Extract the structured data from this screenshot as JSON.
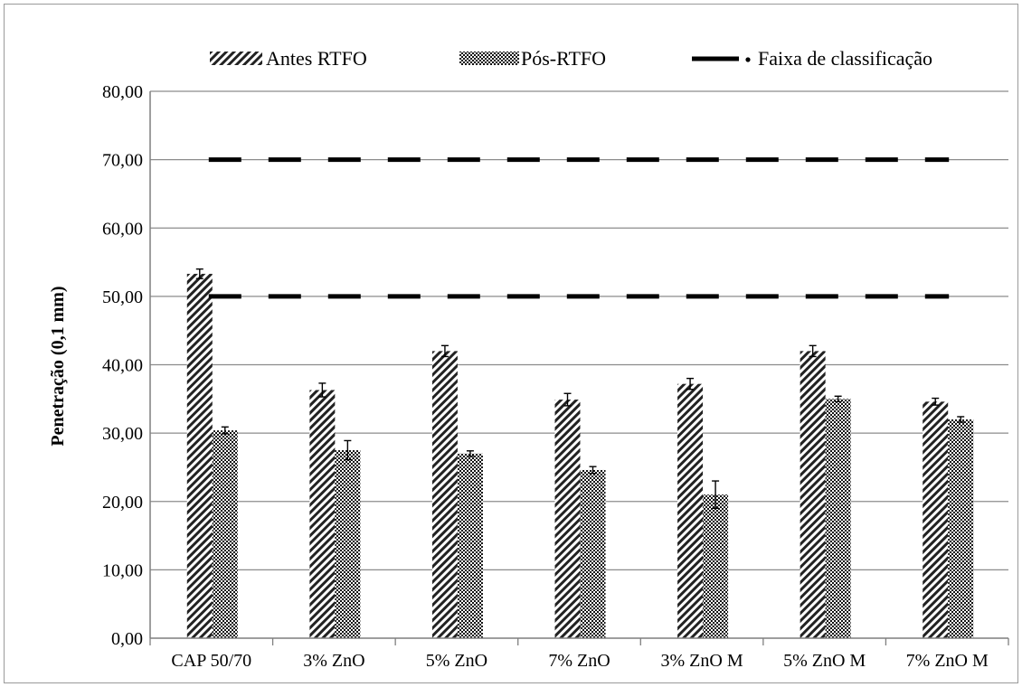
{
  "chart_data": {
    "type": "bar",
    "title": "",
    "xlabel": "",
    "ylabel": "Penetração (0,1 mm)",
    "ylim": [
      0,
      80
    ],
    "yticks": [
      "0,00",
      "10,00",
      "20,00",
      "30,00",
      "40,00",
      "50,00",
      "60,00",
      "70,00",
      "80,00"
    ],
    "grid": true,
    "legend_position": "top",
    "categories": [
      "CAP 50/70",
      "3% ZnO",
      "5% ZnO",
      "7% ZnO",
      "3% ZnO M",
      "5% ZnO M",
      "7% ZnO M"
    ],
    "series": [
      {
        "name": "Antes RTFO",
        "pattern": "diagonal-hatch",
        "values": [
          53.3,
          36.3,
          42.0,
          34.9,
          37.2,
          42.0,
          34.6
        ],
        "errors": [
          0.7,
          1.0,
          0.8,
          0.9,
          0.8,
          0.8,
          0.5
        ]
      },
      {
        "name": "Pós-RTFO",
        "pattern": "crosshatch",
        "values": [
          30.4,
          27.5,
          27.0,
          24.6,
          21.0,
          35.0,
          32.0
        ],
        "errors": [
          0.5,
          1.4,
          0.4,
          0.5,
          2.0,
          0.4,
          0.4
        ]
      }
    ],
    "reference_lines": [
      {
        "name": "Faixa de classificação",
        "values": [
          50,
          70
        ],
        "style": "dashed",
        "color": "#000000"
      }
    ]
  }
}
